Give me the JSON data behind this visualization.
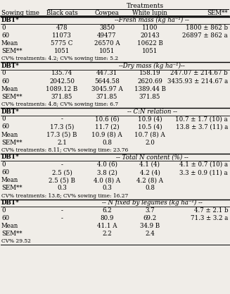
{
  "title": "Treatments",
  "col_headers": [
    "Sowing time",
    "Black oats",
    "Cowpea",
    "White lupin",
    "SEM**"
  ],
  "sections": [
    {
      "section_header": "DBT*",
      "section_label": "--Fresh mass (kg ha⁻¹) --",
      "rows": [
        [
          "0",
          "478",
          "3850",
          "1100",
          "1800 ± 862 b"
        ],
        [
          "60",
          "11073",
          "49477",
          "20143",
          "26897 ± 862 a"
        ],
        [
          "Mean",
          "5775 C",
          "26570 A",
          "10622 B",
          ""
        ],
        [
          "SEM**",
          "1051",
          "1051",
          "1051",
          ""
        ]
      ],
      "cv_note": "CV% treatments: 4.2; CV% sowing time: 5.2"
    },
    {
      "section_header": "DBT*",
      "section_label": "--Dry mass (kg ha⁻¹)--",
      "rows": [
        [
          "0",
          "135.74",
          "447.31",
          "158.19",
          "247.07 ± 214.67 b"
        ],
        [
          "60",
          "2042.50",
          "5644.58",
          "2620.69",
          "3435.93 ± 214.67 a"
        ],
        [
          "Mean",
          "1089.12 B",
          "3045.97 A",
          "1389.44 B",
          ""
        ],
        [
          "SEM**",
          "371.85",
          "371.85",
          "371.85",
          ""
        ]
      ],
      "cv_note": "CV% treatments: 4.8; CV% sowing time: 6.7"
    },
    {
      "section_header": "DBT*",
      "section_label": "-- C:N relation --",
      "rows": [
        [
          "0",
          "-",
          "10.6 (6)",
          "10.9 (4)",
          "10.7 ± 1.7 (10) a"
        ],
        [
          "60",
          "17.3 (5)",
          "11.7 (2)",
          "10.5 (4)",
          "13.8 ± 3.7 (11) a"
        ],
        [
          "Mean",
          "17.3 (5) B",
          "10.9 (8) A",
          "10.7 (8) A",
          ""
        ],
        [
          "SEM**",
          "2.1",
          "0.8",
          "2.0",
          ""
        ]
      ],
      "cv_note": "CV% treatments: 8.11; CV% sowing time: 23.76"
    },
    {
      "section_header": "DBT*",
      "section_label": "-- Total N content (%) --",
      "rows": [
        [
          "0",
          "-",
          "4.0 (6)",
          "4.1 (4)",
          "4.1 ± 0.7 (10) a"
        ],
        [
          "60",
          "2.5 (5)",
          "3.8 (2)",
          "4.2 (4)",
          "3.3 ± 0.9 (11) a"
        ],
        [
          "Mean",
          "2.5 (5) B",
          "4.0 (8) A",
          "4.2 (8) A",
          ""
        ],
        [
          "SEM**",
          "0.3",
          "0.3",
          "0.8",
          ""
        ]
      ],
      "cv_note": "CV% treatments: 13.8; CV% sowing time: 16.27"
    },
    {
      "section_header": "DBT*",
      "section_label": "-- N fixed by legumes (kg ha⁻¹) --",
      "rows": [
        [
          "0",
          "-",
          "6.2",
          "3.7",
          "4.7 ± 2.1 b"
        ],
        [
          "60",
          "-",
          "80.9",
          "69.2",
          "71.3 ± 3.2 a"
        ],
        [
          "Mean",
          "",
          "41.1 A",
          "34.9 B",
          ""
        ],
        [
          "SEM**",
          "",
          "2.2",
          "2.4",
          ""
        ]
      ],
      "cv_note": "CV% 29.52"
    }
  ],
  "bg_color": "#f0ede8",
  "text_color": "#000000",
  "font_size": 6.2,
  "line_color": "#000000"
}
